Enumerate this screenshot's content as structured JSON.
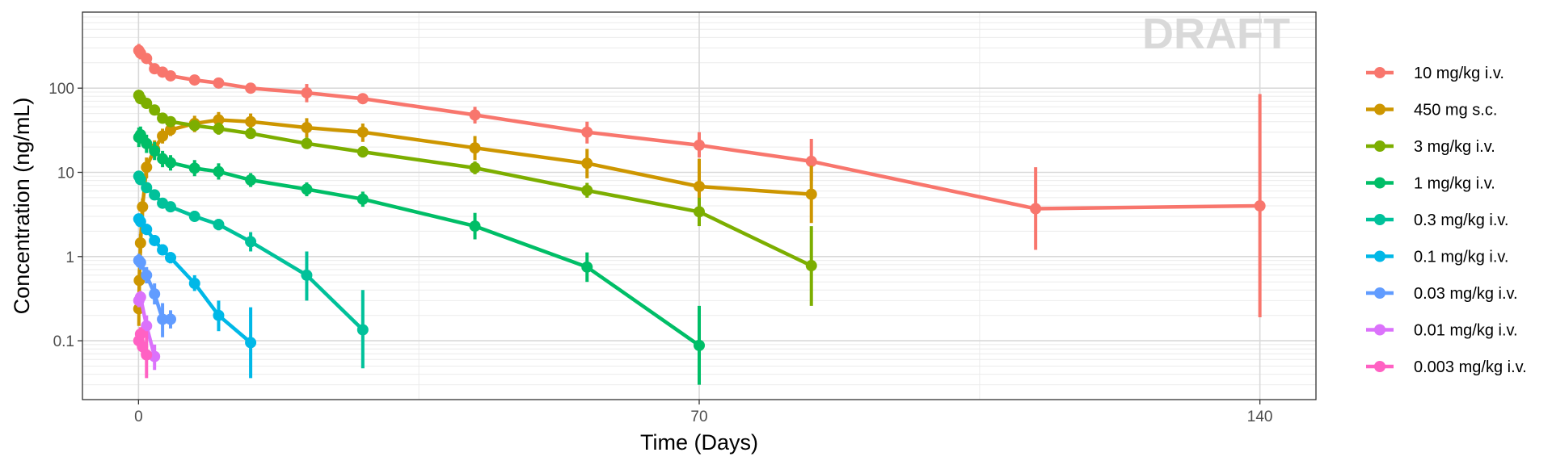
{
  "chart_data": {
    "type": "line",
    "title": "",
    "watermark": "DRAFT",
    "xlabel": "Time (Days)",
    "ylabel": "Concentration (ng/mL)",
    "xlim": [
      -7,
      147
    ],
    "ylim": [
      0.02,
      800
    ],
    "yscale": "log",
    "grid": true,
    "legend_position": "right",
    "xticks": [
      {
        "value": 0,
        "label": "0"
      },
      {
        "value": 70,
        "label": "70"
      },
      {
        "value": 140,
        "label": "140"
      }
    ],
    "yticks": [
      {
        "value": 0.1,
        "label": "0.1"
      },
      {
        "value": 1,
        "label": "1"
      },
      {
        "value": 10,
        "label": "10"
      },
      {
        "value": 100,
        "label": "100"
      }
    ],
    "series": [
      {
        "name": "10 mg/kg i.v.",
        "color": "#F8766D",
        "points": [
          {
            "x": 0.04,
            "y": 280,
            "lo": 235,
            "hi": 335
          },
          {
            "x": 0.25,
            "y": 260,
            "lo": 220,
            "hi": 305
          },
          {
            "x": 1,
            "y": 225,
            "lo": 195,
            "hi": 260
          },
          {
            "x": 2,
            "y": 170,
            "lo": 150,
            "hi": 195
          },
          {
            "x": 3,
            "y": 155,
            "lo": 138,
            "hi": 175
          },
          {
            "x": 4,
            "y": 140,
            "lo": 125,
            "hi": 158
          },
          {
            "x": 7,
            "y": 125,
            "lo": 110,
            "hi": 142
          },
          {
            "x": 10,
            "y": 115,
            "lo": 100,
            "hi": 132
          },
          {
            "x": 14,
            "y": 100,
            "lo": 88,
            "hi": 115
          },
          {
            "x": 21,
            "y": 88,
            "lo": 68,
            "hi": 112
          },
          {
            "x": 28,
            "y": 75,
            "lo": 65,
            "hi": 86
          },
          {
            "x": 42,
            "y": 48,
            "lo": 38,
            "hi": 60
          },
          {
            "x": 56,
            "y": 30,
            "lo": 22,
            "hi": 40
          },
          {
            "x": 70,
            "y": 21,
            "lo": 15,
            "hi": 30
          },
          {
            "x": 84,
            "y": 13.5,
            "lo": 8,
            "hi": 25
          },
          {
            "x": 112,
            "y": 3.7,
            "lo": 1.2,
            "hi": 11.5
          },
          {
            "x": 140,
            "y": 4,
            "lo": 0.19,
            "hi": 85
          }
        ]
      },
      {
        "name": "450 mg s.c.",
        "color": "#CD9600",
        "points": [
          {
            "x": 0.04,
            "y": 0.24,
            "lo": 0.15,
            "hi": 0.35
          },
          {
            "x": 0.1,
            "y": 0.52,
            "lo": 0.38,
            "hi": 0.7
          },
          {
            "x": 0.25,
            "y": 1.45,
            "lo": 1.1,
            "hi": 1.85
          },
          {
            "x": 0.5,
            "y": 3.9,
            "lo": 3,
            "hi": 4.9
          },
          {
            "x": 1,
            "y": 11.5,
            "lo": 8.5,
            "hi": 15
          },
          {
            "x": 2,
            "y": 19,
            "lo": 15,
            "hi": 24
          },
          {
            "x": 3,
            "y": 27,
            "lo": 22,
            "hi": 33
          },
          {
            "x": 4,
            "y": 32,
            "lo": 27,
            "hi": 38
          },
          {
            "x": 7,
            "y": 38,
            "lo": 30,
            "hi": 47
          },
          {
            "x": 10,
            "y": 42,
            "lo": 34,
            "hi": 52
          },
          {
            "x": 14,
            "y": 40,
            "lo": 32,
            "hi": 50
          },
          {
            "x": 21,
            "y": 34,
            "lo": 26,
            "hi": 44
          },
          {
            "x": 28,
            "y": 30,
            "lo": 23,
            "hi": 38
          },
          {
            "x": 42,
            "y": 19.5,
            "lo": 14,
            "hi": 27
          },
          {
            "x": 56,
            "y": 12.8,
            "lo": 8.5,
            "hi": 19
          },
          {
            "x": 70,
            "y": 6.8,
            "lo": 3.2,
            "hi": 14.5
          },
          {
            "x": 84,
            "y": 5.5,
            "lo": 2.5,
            "hi": 12
          }
        ]
      },
      {
        "name": "3 mg/kg i.v.",
        "color": "#7CAE00",
        "points": [
          {
            "x": 0.04,
            "y": 82,
            "lo": 70,
            "hi": 95
          },
          {
            "x": 0.25,
            "y": 75,
            "lo": 65,
            "hi": 86
          },
          {
            "x": 1,
            "y": 66,
            "lo": 58,
            "hi": 75
          },
          {
            "x": 2,
            "y": 55,
            "lo": 48,
            "hi": 63
          },
          {
            "x": 3,
            "y": 44,
            "lo": 38,
            "hi": 51
          },
          {
            "x": 4,
            "y": 40,
            "lo": 35,
            "hi": 46
          },
          {
            "x": 7,
            "y": 36,
            "lo": 31,
            "hi": 42
          },
          {
            "x": 10,
            "y": 33,
            "lo": 28,
            "hi": 39
          },
          {
            "x": 14,
            "y": 29,
            "lo": 25,
            "hi": 34
          },
          {
            "x": 21,
            "y": 22,
            "lo": 19,
            "hi": 26
          },
          {
            "x": 28,
            "y": 17.5,
            "lo": 15,
            "hi": 20.5
          },
          {
            "x": 42,
            "y": 11.3,
            "lo": 9.5,
            "hi": 13.5
          },
          {
            "x": 56,
            "y": 6.1,
            "lo": 5,
            "hi": 7.5
          },
          {
            "x": 70,
            "y": 3.4,
            "lo": 2.3,
            "hi": 5
          },
          {
            "x": 84,
            "y": 0.78,
            "lo": 0.26,
            "hi": 2.3
          }
        ]
      },
      {
        "name": "1 mg/kg i.v.",
        "color": "#00BE67",
        "points": [
          {
            "x": 0.04,
            "y": 26,
            "lo": 20,
            "hi": 34
          },
          {
            "x": 0.25,
            "y": 28,
            "lo": 22,
            "hi": 35
          },
          {
            "x": 1,
            "y": 22,
            "lo": 17,
            "hi": 28
          },
          {
            "x": 2,
            "y": 18,
            "lo": 14,
            "hi": 23
          },
          {
            "x": 3,
            "y": 14.5,
            "lo": 11.5,
            "hi": 18
          },
          {
            "x": 4,
            "y": 13,
            "lo": 10.5,
            "hi": 16
          },
          {
            "x": 7,
            "y": 11.2,
            "lo": 9,
            "hi": 14
          },
          {
            "x": 10,
            "y": 10.2,
            "lo": 8.2,
            "hi": 12.8
          },
          {
            "x": 14,
            "y": 8.1,
            "lo": 6.7,
            "hi": 9.8
          },
          {
            "x": 21,
            "y": 6.3,
            "lo": 5.2,
            "hi": 7.6
          },
          {
            "x": 28,
            "y": 4.8,
            "lo": 3.9,
            "hi": 5.9
          },
          {
            "x": 42,
            "y": 2.3,
            "lo": 1.6,
            "hi": 3.3
          },
          {
            "x": 56,
            "y": 0.75,
            "lo": 0.5,
            "hi": 1.12
          },
          {
            "x": 70,
            "y": 0.088,
            "lo": 0.03,
            "hi": 0.26
          }
        ]
      },
      {
        "name": "0.3 mg/kg i.v.",
        "color": "#00C19A",
        "points": [
          {
            "x": 0.04,
            "y": 9,
            "lo": 7.8,
            "hi": 10.4
          },
          {
            "x": 0.25,
            "y": 8.2,
            "lo": 7.1,
            "hi": 9.4
          },
          {
            "x": 1,
            "y": 6.6,
            "lo": 5.8,
            "hi": 7.5
          },
          {
            "x": 2,
            "y": 5.4,
            "lo": 4.8,
            "hi": 6.1
          },
          {
            "x": 3,
            "y": 4.3,
            "lo": 3.8,
            "hi": 4.9
          },
          {
            "x": 4,
            "y": 3.9,
            "lo": 3.4,
            "hi": 4.4
          },
          {
            "x": 7,
            "y": 3,
            "lo": 2.6,
            "hi": 3.5
          },
          {
            "x": 10,
            "y": 2.4,
            "lo": 2.05,
            "hi": 2.8
          },
          {
            "x": 14,
            "y": 1.5,
            "lo": 1.15,
            "hi": 1.95
          },
          {
            "x": 21,
            "y": 0.6,
            "lo": 0.3,
            "hi": 1.15
          },
          {
            "x": 28,
            "y": 0.135,
            "lo": 0.047,
            "hi": 0.4
          }
        ]
      },
      {
        "name": "0.1 mg/kg i.v.",
        "color": "#00B8E7",
        "points": [
          {
            "x": 0.04,
            "y": 2.8,
            "lo": 2.4,
            "hi": 3.2
          },
          {
            "x": 0.25,
            "y": 2.6,
            "lo": 2.25,
            "hi": 3
          },
          {
            "x": 1,
            "y": 2.1,
            "lo": 1.8,
            "hi": 2.45
          },
          {
            "x": 2,
            "y": 1.55,
            "lo": 1.35,
            "hi": 1.8
          },
          {
            "x": 3,
            "y": 1.2,
            "lo": 1.05,
            "hi": 1.4
          },
          {
            "x": 4,
            "y": 0.97,
            "lo": 0.83,
            "hi": 1.13
          },
          {
            "x": 7,
            "y": 0.48,
            "lo": 0.39,
            "hi": 0.6
          },
          {
            "x": 10,
            "y": 0.2,
            "lo": 0.13,
            "hi": 0.3
          },
          {
            "x": 14,
            "y": 0.095,
            "lo": 0.036,
            "hi": 0.25
          }
        ]
      },
      {
        "name": "0.03 mg/kg i.v.",
        "color": "#619CFF",
        "points": [
          {
            "x": 0.04,
            "y": 0.9,
            "lo": 0.75,
            "hi": 1.08
          },
          {
            "x": 0.25,
            "y": 0.85,
            "lo": 0.7,
            "hi": 1.02
          },
          {
            "x": 1,
            "y": 0.6,
            "lo": 0.48,
            "hi": 0.75
          },
          {
            "x": 2,
            "y": 0.36,
            "lo": 0.27,
            "hi": 0.48
          },
          {
            "x": 3,
            "y": 0.18,
            "lo": 0.11,
            "hi": 0.28
          },
          {
            "x": 4,
            "y": 0.18,
            "lo": 0.14,
            "hi": 0.23
          }
        ]
      },
      {
        "name": "0.01 mg/kg i.v.",
        "color": "#DB72FB",
        "points": [
          {
            "x": 0.04,
            "y": 0.3,
            "lo": 0.25,
            "hi": 0.36
          },
          {
            "x": 0.25,
            "y": 0.33,
            "lo": 0.28,
            "hi": 0.39
          },
          {
            "x": 1,
            "y": 0.15,
            "lo": 0.11,
            "hi": 0.2
          },
          {
            "x": 2,
            "y": 0.065,
            "lo": 0.045,
            "hi": 0.09
          }
        ]
      },
      {
        "name": "0.003 mg/kg i.v.",
        "color": "#FF61C3",
        "points": [
          {
            "x": 0.04,
            "y": 0.1,
            "lo": 0.085,
            "hi": 0.12
          },
          {
            "x": 0.25,
            "y": 0.12,
            "lo": 0.1,
            "hi": 0.145
          },
          {
            "x": 0.5,
            "y": 0.085,
            "lo": 0.068,
            "hi": 0.11
          },
          {
            "x": 1,
            "y": 0.068,
            "lo": 0.036,
            "hi": 0.13
          }
        ]
      }
    ]
  }
}
